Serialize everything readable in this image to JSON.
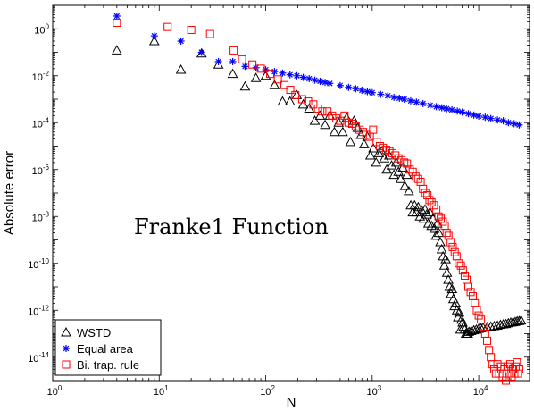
{
  "chart_data": {
    "type": "scatter",
    "title": "",
    "xlabel": "N",
    "ylabel": "Absolute error",
    "xscale": "log",
    "yscale": "log",
    "xlim": [
      1,
      30000
    ],
    "ylim": [
      1e-15,
      10
    ],
    "grid": false,
    "legend_position": "bottom-left",
    "annotation": "Franke1 Function",
    "x_ticks": [
      {
        "value": 1,
        "base": "10",
        "exp": "0"
      },
      {
        "value": 10,
        "base": "10",
        "exp": "1"
      },
      {
        "value": 100,
        "base": "10",
        "exp": "2"
      },
      {
        "value": 1000,
        "base": "10",
        "exp": "3"
      },
      {
        "value": 10000,
        "base": "10",
        "exp": "4"
      }
    ],
    "y_ticks": [
      {
        "value": 1,
        "base": "10",
        "exp": "0"
      },
      {
        "value": 0.01,
        "base": "10",
        "exp": "-2"
      },
      {
        "value": 0.0001,
        "base": "10",
        "exp": "-4"
      },
      {
        "value": 1e-06,
        "base": "10",
        "exp": "-6"
      },
      {
        "value": 1e-08,
        "base": "10",
        "exp": "-8"
      },
      {
        "value": 1e-10,
        "base": "10",
        "exp": "-10"
      },
      {
        "value": 1e-12,
        "base": "10",
        "exp": "-12"
      },
      {
        "value": 1e-14,
        "base": "10",
        "exp": "-14"
      }
    ],
    "series": [
      {
        "name": "WSTD",
        "marker": "triangle",
        "color": "#000000",
        "points": [
          [
            4,
            0.12
          ],
          [
            9,
            0.3
          ],
          [
            16,
            0.018
          ],
          [
            25,
            0.09
          ],
          [
            36,
            0.03
          ],
          [
            49,
            0.012
          ],
          [
            64,
            0.0035
          ],
          [
            81,
            0.008
          ],
          [
            100,
            0.01
          ],
          [
            121,
            0.004
          ],
          [
            144,
            0.0008
          ],
          [
            169,
            0.0008
          ],
          [
            196,
            0.0015
          ],
          [
            225,
            0.0006
          ],
          [
            256,
            0.0004
          ],
          [
            289,
            0.00012
          ],
          [
            324,
            0.0002
          ],
          [
            361,
            8e-05
          ],
          [
            400,
            0.0002
          ],
          [
            441,
            4e-05
          ],
          [
            484,
            0.0001
          ],
          [
            529,
            4e-05
          ],
          [
            576,
            0.00016
          ],
          [
            625,
            1.5e-05
          ],
          [
            676,
            0.00012
          ],
          [
            729,
            6e-05
          ],
          [
            784,
            3e-05
          ],
          [
            841,
            1.2e-05
          ],
          [
            900,
            2.5e-05
          ],
          [
            961,
            4e-06
          ],
          [
            1024,
            8e-06
          ],
          [
            1089,
            2e-06
          ],
          [
            1156,
            5e-06
          ],
          [
            1225,
            6e-06
          ],
          [
            1296,
            3e-06
          ],
          [
            1369,
            1e-06
          ],
          [
            1444,
            4e-06
          ],
          [
            1521,
            1.5e-06
          ],
          [
            1600,
            6e-07
          ],
          [
            1681,
            2e-06
          ],
          [
            1764,
            8e-07
          ],
          [
            1849,
            4e-07
          ],
          [
            1936,
            1.2e-06
          ],
          [
            2025,
            2e-07
          ],
          [
            2116,
            6e-07
          ],
          [
            2209,
            1.2e-07
          ],
          [
            2304,
            3e-08
          ],
          [
            2401,
            1.5e-08
          ],
          [
            2500,
            3e-08
          ],
          [
            2601,
            1.5e-08
          ],
          [
            2704,
            2.5e-08
          ],
          [
            2809,
            1e-08
          ],
          [
            2916,
            1.8e-08
          ],
          [
            3025,
            8e-09
          ],
          [
            3136,
            2e-08
          ],
          [
            3249,
            1.2e-08
          ],
          [
            3364,
            5e-09
          ],
          [
            3481,
            1.5e-08
          ],
          [
            3600,
            4e-09
          ],
          [
            3721,
            8e-09
          ],
          [
            3844,
            3e-09
          ],
          [
            3969,
            1.5e-09
          ],
          [
            4096,
            5e-09
          ],
          [
            4225,
            2e-09
          ],
          [
            4356,
            8e-10
          ],
          [
            4489,
            4e-10
          ],
          [
            4624,
            2e-10
          ],
          [
            4761,
            8e-11
          ],
          [
            4900,
            1.5e-10
          ],
          [
            5041,
            4e-11
          ],
          [
            5184,
            2e-11
          ],
          [
            5329,
            1e-11
          ],
          [
            5476,
            5e-12
          ],
          [
            5625,
            8e-12
          ],
          [
            5776,
            3e-12
          ],
          [
            5929,
            1.5e-12
          ],
          [
            6084,
            2e-12
          ],
          [
            6241,
            1e-12
          ],
          [
            6400,
            5e-13
          ],
          [
            6561,
            8e-13
          ],
          [
            6724,
            1.5e-13
          ],
          [
            6889,
            4e-13
          ],
          [
            7056,
            3e-13
          ],
          [
            7225,
            2e-13
          ],
          [
            7396,
            1.5e-13
          ],
          [
            7569,
            1e-13
          ],
          [
            7744,
            1e-13
          ],
          [
            7921,
            1e-13
          ],
          [
            8100,
            1.2e-13
          ],
          [
            8500,
            1.3e-13
          ],
          [
            9000,
            1.4e-13
          ],
          [
            9500,
            1.5e-13
          ],
          [
            10000,
            1.6e-13
          ],
          [
            10500,
            1.7e-13
          ],
          [
            11000,
            1.8e-13
          ],
          [
            12000,
            1.9e-13
          ],
          [
            13000,
            2e-13
          ],
          [
            14000,
            2.1e-13
          ],
          [
            15000,
            2.2e-13
          ],
          [
            16000,
            2.4e-13
          ],
          [
            17000,
            2.5e-13
          ],
          [
            18000,
            2.6e-13
          ],
          [
            19000,
            2.8e-13
          ],
          [
            20000,
            3e-13
          ],
          [
            21000,
            3.1e-13
          ],
          [
            22000,
            3.2e-13
          ],
          [
            23000,
            3.4e-13
          ],
          [
            24000,
            3.5e-13
          ],
          [
            25000,
            3.7e-13
          ]
        ]
      },
      {
        "name": "Equal area",
        "marker": "asterisk",
        "color": "#0000ff",
        "points": [
          [
            4,
            3.5
          ],
          [
            9,
            0.5
          ],
          [
            16,
            0.3
          ],
          [
            25,
            0.1
          ],
          [
            36,
            0.04
          ],
          [
            49,
            0.04
          ],
          [
            64,
            0.025
          ],
          [
            81,
            0.022
          ],
          [
            100,
            0.018
          ],
          [
            121,
            0.015
          ],
          [
            144,
            0.013
          ],
          [
            169,
            0.011
          ],
          [
            196,
            0.01
          ],
          [
            225,
            0.0085
          ],
          [
            256,
            0.0075
          ],
          [
            289,
            0.0065
          ],
          [
            324,
            0.0058
          ],
          [
            361,
            0.0052
          ],
          [
            400,
            0.0047
          ],
          [
            500,
            0.0038
          ],
          [
            600,
            0.0032
          ],
          [
            700,
            0.0028
          ],
          [
            800,
            0.0024
          ],
          [
            900,
            0.0021
          ],
          [
            1000,
            0.0019
          ],
          [
            1200,
            0.0016
          ],
          [
            1400,
            0.0014
          ],
          [
            1600,
            0.0012
          ],
          [
            1800,
            0.0011
          ],
          [
            2000,
            0.001
          ],
          [
            2300,
            0.00085
          ],
          [
            2600,
            0.00075
          ],
          [
            3000,
            0.00065
          ],
          [
            3500,
            0.00055
          ],
          [
            4000,
            0.00048
          ],
          [
            4500,
            0.00043
          ],
          [
            5000,
            0.00039
          ],
          [
            5600,
            0.00035
          ],
          [
            6300,
            0.00031
          ],
          [
            7000,
            0.00028
          ],
          [
            8000,
            0.00024
          ],
          [
            9000,
            0.00021
          ],
          [
            10000,
            0.00019
          ],
          [
            11500,
            0.00017
          ],
          [
            13000,
            0.00015
          ],
          [
            15000,
            0.00013
          ],
          [
            17000,
            0.00012
          ],
          [
            19000,
            0.0001
          ],
          [
            21500,
            9e-05
          ],
          [
            24000,
            8e-05
          ]
        ]
      },
      {
        "name": "Bi. trap. rule",
        "marker": "square",
        "color": "#ff0000",
        "points": [
          [
            4,
            1.8
          ],
          [
            12,
            1.2
          ],
          [
            20,
            0.9
          ],
          [
            30,
            0.6
          ],
          [
            50,
            0.12
          ],
          [
            60,
            0.05
          ],
          [
            75,
            0.03
          ],
          [
            90,
            0.02
          ],
          [
            110,
            0.012
          ],
          [
            130,
            0.007
          ],
          [
            150,
            0.004
          ],
          [
            170,
            0.0025
          ],
          [
            190,
            0.0015
          ],
          [
            220,
            0.001
          ],
          [
            250,
            0.0008
          ],
          [
            280,
            0.0006
          ],
          [
            310,
            0.0004
          ],
          [
            340,
            0.0003
          ],
          [
            380,
            0.0003
          ],
          [
            420,
            0.0002
          ],
          [
            460,
            0.00015
          ],
          [
            500,
            0.00012
          ],
          [
            550,
            0.0002
          ],
          [
            600,
            0.0001
          ],
          [
            650,
            9e-05
          ],
          [
            700,
            7e-05
          ],
          [
            760,
            5e-05
          ],
          [
            820,
            4e-05
          ],
          [
            880,
            3e-05
          ],
          [
            950,
            2.5e-05
          ],
          [
            1020,
            5e-05
          ],
          [
            1100,
            1.5e-05
          ],
          [
            1180,
            1e-05
          ],
          [
            1260,
            8.5e-06
          ],
          [
            1350,
            7e-06
          ],
          [
            1450,
            6e-06
          ],
          [
            1550,
            5e-06
          ],
          [
            1650,
            4e-06
          ],
          [
            1760,
            3e-06
          ],
          [
            1880,
            2.5e-06
          ],
          [
            2000,
            2e-06
          ],
          [
            2120,
            1.8e-06
          ],
          [
            2250,
            1e-06
          ],
          [
            2400,
            8e-07
          ],
          [
            2550,
            5e-07
          ],
          [
            2700,
            4e-07
          ],
          [
            2850,
            3e-07
          ],
          [
            3000,
            1.5e-07
          ],
          [
            3150,
            1e-07
          ],
          [
            3300,
            8e-08
          ],
          [
            3450,
            5e-08
          ],
          [
            3600,
            4e-08
          ],
          [
            3800,
            3e-08
          ],
          [
            4000,
            2e-08
          ],
          [
            4200,
            1e-08
          ],
          [
            4400,
            8e-09
          ],
          [
            4600,
            6e-09
          ],
          [
            4800,
            4e-09
          ],
          [
            5000,
            2e-09
          ],
          [
            5200,
            1.5e-09
          ],
          [
            5450,
            8e-10
          ],
          [
            5700,
            5e-10
          ],
          [
            5950,
            3e-10
          ],
          [
            6200,
            2e-10
          ],
          [
            6500,
            1e-10
          ],
          [
            6800,
            8e-11
          ],
          [
            7100,
            5e-11
          ],
          [
            7400,
            3e-11
          ],
          [
            7700,
            2e-11
          ],
          [
            8000,
            1e-11
          ],
          [
            8400,
            6e-12
          ],
          [
            8800,
            4e-12
          ],
          [
            9200,
            2e-12
          ],
          [
            9600,
            1e-12
          ],
          [
            10000,
            6e-13
          ],
          [
            10500,
            4e-13
          ],
          [
            11000,
            2e-13
          ],
          [
            11500,
            1e-13
          ],
          [
            12000,
            5e-14
          ],
          [
            12500,
            2e-14
          ],
          [
            13000,
            1e-14
          ],
          [
            13500,
            5e-15
          ],
          [
            14000,
            3e-15
          ],
          [
            14500,
            2e-15
          ],
          [
            15000,
            5e-15
          ],
          [
            15600,
            2e-15
          ],
          [
            16200,
            4e-15
          ],
          [
            16800,
            1.5e-15
          ],
          [
            17400,
            3e-15
          ],
          [
            18000,
            1e-15
          ],
          [
            18600,
            4e-15
          ],
          [
            19200,
            2e-15
          ],
          [
            19800,
            5e-15
          ],
          [
            20400,
            1.5e-15
          ],
          [
            21000,
            3e-15
          ],
          [
            21600,
            2e-15
          ],
          [
            22200,
            4e-15
          ],
          [
            22800,
            6e-15
          ],
          [
            23400,
            2e-15
          ],
          [
            24000,
            3e-15
          ]
        ]
      }
    ]
  }
}
